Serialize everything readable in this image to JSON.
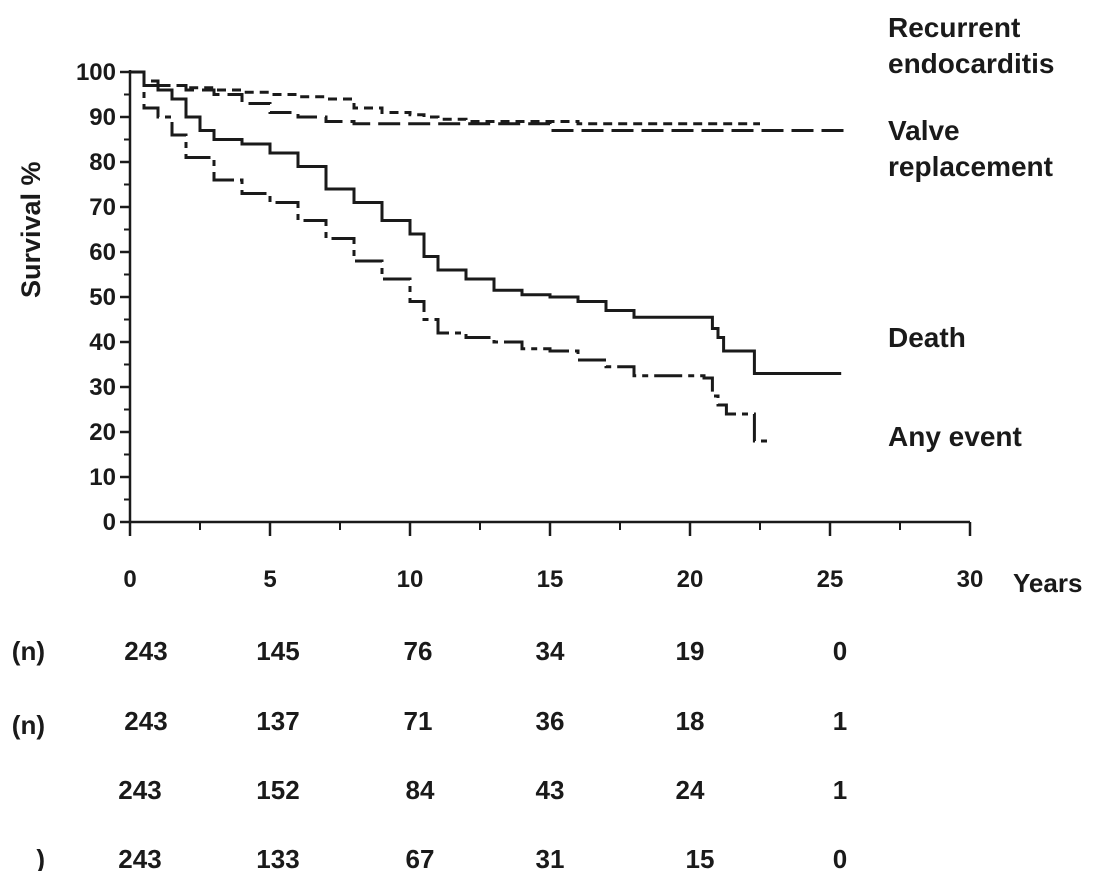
{
  "chart_data": {
    "type": "line",
    "ylabel": "Survival %",
    "xlabel": "Years",
    "xlim": [
      0,
      30
    ],
    "ylim": [
      0,
      100
    ],
    "x_ticks": [
      0,
      5,
      10,
      15,
      20,
      25,
      30
    ],
    "y_ticks": [
      0,
      10,
      20,
      30,
      40,
      50,
      60,
      70,
      80,
      90,
      100
    ],
    "grid": false,
    "series": [
      {
        "name": "Recurrent endocarditis",
        "style": "short-dashed",
        "x": [
          0,
          0.5,
          1,
          2,
          3,
          4,
          5,
          6,
          7,
          8,
          9,
          10,
          10.5,
          11,
          12,
          13,
          14,
          15,
          16,
          17,
          18,
          19,
          20,
          21,
          22,
          22.5
        ],
        "y": [
          100,
          98,
          97,
          96.5,
          96,
          95.5,
          95,
          94.5,
          94,
          92,
          91,
          90.5,
          90,
          89.5,
          89,
          89,
          89,
          89,
          88.5,
          88.5,
          88.5,
          88.5,
          88.5,
          88.5,
          88.5,
          88.5
        ]
      },
      {
        "name": "Valve replacement",
        "style": "long-dashed",
        "x": [
          0,
          0.5,
          1,
          2,
          3,
          4,
          5,
          6,
          7,
          8,
          9,
          10,
          11,
          12,
          13,
          14,
          15,
          16,
          17,
          18,
          19,
          20,
          21,
          22,
          23,
          24,
          25.5
        ],
        "y": [
          100,
          98,
          97,
          96,
          95,
          93,
          91,
          90,
          89,
          88.5,
          88.5,
          88.5,
          88.5,
          88.5,
          88.5,
          88.5,
          87,
          87,
          87,
          87,
          87,
          87,
          87,
          87,
          87,
          87,
          87
        ]
      },
      {
        "name": "Death",
        "style": "solid",
        "x": [
          0,
          0.5,
          1,
          1.5,
          2,
          2.5,
          3,
          4,
          5,
          6,
          7,
          8,
          9,
          10,
          10.5,
          11,
          12,
          13,
          14,
          15,
          16,
          17,
          18,
          19,
          20,
          20.6,
          20.8,
          21,
          21.2,
          22.3,
          23,
          24,
          25.4
        ],
        "y": [
          100,
          97,
          96,
          94,
          90,
          87,
          85,
          84,
          82,
          79,
          74,
          71,
          67,
          64,
          59,
          56,
          54,
          51.5,
          50.5,
          50,
          49,
          47,
          45.5,
          45.5,
          45.5,
          45.5,
          43,
          41,
          38,
          33,
          33,
          33,
          33
        ]
      },
      {
        "name": "Any event",
        "style": "dash-dot",
        "x": [
          0,
          0.5,
          1,
          1.5,
          2,
          3,
          4,
          5,
          6,
          7,
          8,
          9,
          10,
          10.5,
          11,
          12,
          13,
          14,
          15,
          16,
          17,
          18,
          19,
          20,
          20.5,
          20.8,
          21,
          21.3,
          22.3,
          22.9
        ],
        "y": [
          100,
          92,
          90,
          86,
          81,
          76,
          73,
          71,
          67,
          63,
          58,
          54,
          49,
          45,
          42,
          41,
          40,
          38.5,
          38,
          36,
          34.5,
          32.5,
          32.5,
          32.5,
          32,
          28,
          26,
          24,
          18,
          18
        ]
      }
    ],
    "series_labels": [
      {
        "text": "Recurrent",
        "line2": "endocarditis"
      },
      {
        "text": "Valve",
        "line2": "replacement"
      },
      {
        "text": "Death",
        "line2": ""
      },
      {
        "text": "Any event",
        "line2": ""
      }
    ],
    "risk_table": {
      "row_labels": [
        "(n)",
        "(n)",
        "",
        ")"
      ],
      "rows": [
        [
          "243",
          "145",
          "76",
          "34",
          "19",
          "0"
        ],
        [
          "243",
          "137",
          "71",
          "36",
          "18",
          "1"
        ],
        [
          "243",
          "152",
          "84",
          "43",
          "24",
          "1"
        ],
        [
          "243",
          "133",
          "67",
          "31",
          "15",
          "0"
        ]
      ]
    }
  }
}
